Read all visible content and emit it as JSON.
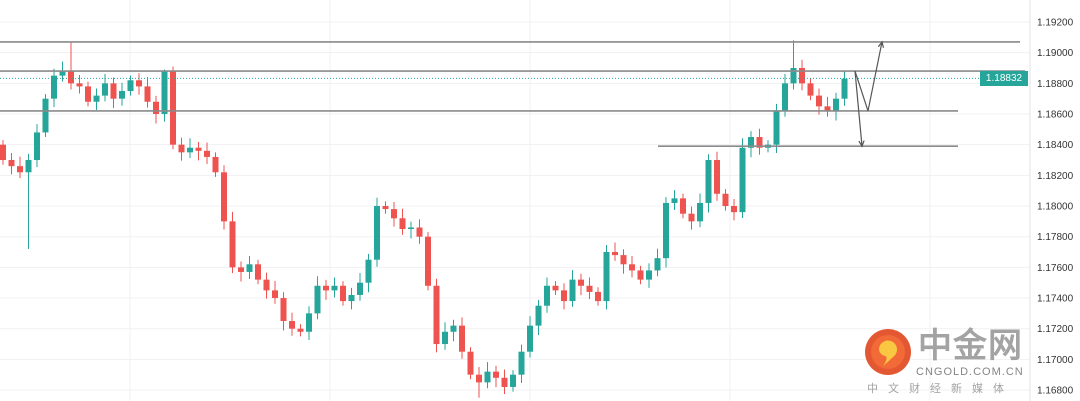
{
  "chart_data": {
    "type": "candlestick",
    "title": "",
    "xlabel": "",
    "ylabel": "",
    "ylim": [
      1.1672,
      1.1934
    ],
    "y_ticks": [
      "1.19200",
      "1.19000",
      "1.18800",
      "1.18600",
      "1.18400",
      "1.18200",
      "1.18000",
      "1.17800",
      "1.17600",
      "1.17400",
      "1.17200",
      "1.17000",
      "1.16800"
    ],
    "y_tick_values": [
      1.192,
      1.19,
      1.188,
      1.186,
      1.184,
      1.182,
      1.18,
      1.178,
      1.176,
      1.174,
      1.172,
      1.17,
      1.168
    ],
    "current_price": 1.18832,
    "current_price_label": "1.18832",
    "first_open": 1.184,
    "closes": [
      1.183,
      1.1826,
      1.1822,
      1.183,
      1.1848,
      1.187,
      1.1885,
      1.1888,
      1.188,
      1.1878,
      1.1868,
      1.1872,
      1.188,
      1.187,
      1.1875,
      1.1882,
      1.1878,
      1.1868,
      1.186,
      1.1888,
      1.184,
      1.1835,
      1.1838,
      1.1836,
      1.1832,
      1.1822,
      1.179,
      1.176,
      1.1757,
      1.1762,
      1.1752,
      1.1745,
      1.174,
      1.1725,
      1.172,
      1.1718,
      1.173,
      1.1748,
      1.1745,
      1.1748,
      1.1738,
      1.1742,
      1.175,
      1.1765,
      1.18,
      1.1798,
      1.1792,
      1.1785,
      1.1786,
      1.178,
      1.1748,
      1.171,
      1.1718,
      1.1722,
      1.1705,
      1.169,
      1.1685,
      1.1692,
      1.1688,
      1.1682,
      1.169,
      1.1705,
      1.1722,
      1.1735,
      1.1748,
      1.1745,
      1.1738,
      1.1752,
      1.1748,
      1.1744,
      1.1738,
      1.177,
      1.1768,
      1.1762,
      1.1758,
      1.1752,
      1.1758,
      1.1766,
      1.1802,
      1.1805,
      1.1795,
      1.179,
      1.1802,
      1.183,
      1.1808,
      1.18,
      1.1796,
      1.1838,
      1.1845,
      1.1838,
      1.184,
      1.1862,
      1.188,
      1.189,
      1.188,
      1.1872,
      1.1865,
      1.1862,
      1.187,
      1.1883
    ],
    "wick_extremes": {
      "3": [
        1.1772,
        1.1834
      ],
      "8": [
        1.1876,
        1.1907
      ],
      "19": [
        1.1855,
        1.1889
      ],
      "56": [
        1.1675,
        1.1695
      ],
      "93": [
        1.1876,
        1.1908
      ]
    },
    "levels": [
      {
        "name": "resistance-1",
        "value": 1.1907
      },
      {
        "name": "resistance-2",
        "value": 1.1888
      },
      {
        "name": "support-1",
        "value": 1.1862
      },
      {
        "name": "support-2",
        "value": 1.1839
      }
    ],
    "arrows": [
      {
        "name": "down-scenario",
        "from": 1.1888,
        "to": 1.1839
      },
      {
        "name": "up-scenario",
        "from": 1.1862,
        "to": 1.1907
      }
    ],
    "colors": {
      "up": "#26a69a",
      "down": "#ef5350",
      "level": "#8a8a8a",
      "grid": "#f1f1f4"
    }
  },
  "watermark": {
    "title": "中金网",
    "domain": "CNGOLD.COM.CN",
    "tagline": "中文财经新媒体"
  }
}
